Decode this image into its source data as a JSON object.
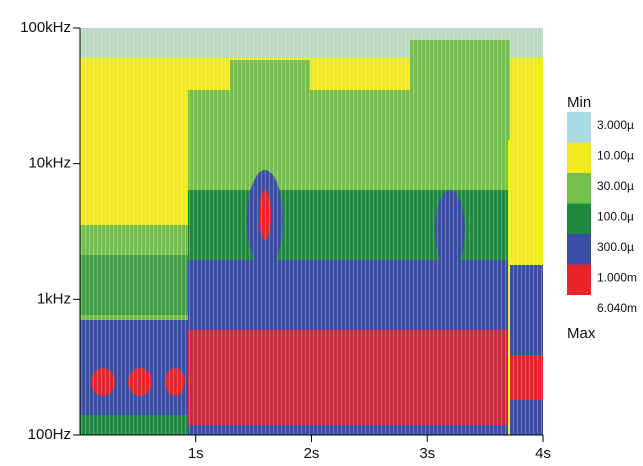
{
  "chart_data": {
    "type": "spectrogram",
    "xlim": [
      0,
      4
    ],
    "xticks": [
      {
        "value": 1,
        "label": "1s"
      },
      {
        "value": 2,
        "label": "2s"
      },
      {
        "value": 3,
        "label": "3s"
      },
      {
        "value": 4,
        "label": "4s"
      }
    ],
    "ylim": [
      100,
      100000
    ],
    "log_y": true,
    "yticks": [
      {
        "value": 100,
        "label": "100Hz"
      },
      {
        "value": 1000,
        "label": "1kHz"
      },
      {
        "value": 10000,
        "label": "10kHz"
      },
      {
        "value": 100000,
        "label": "100kHz"
      }
    ],
    "colorbar": {
      "top_label": "Min",
      "bottom_label": "Max",
      "levels": [
        {
          "value": 3e-06,
          "label": "3.000µ"
        },
        {
          "value": 1e-05,
          "label": "10.00µ"
        },
        {
          "value": 3e-05,
          "label": "30.00µ"
        },
        {
          "value": 0.0001,
          "label": "100.0µ"
        },
        {
          "value": 0.0003,
          "label": "300.0µ"
        },
        {
          "value": 0.001,
          "label": "1.000m"
        },
        {
          "value": 0.00604,
          "label": "6.040m"
        }
      ],
      "colors": [
        "#a9dbe6",
        "#f1ea1e",
        "#74c04b",
        "#1f8a3f",
        "#3b4ea6",
        "#e8242b"
      ]
    }
  }
}
